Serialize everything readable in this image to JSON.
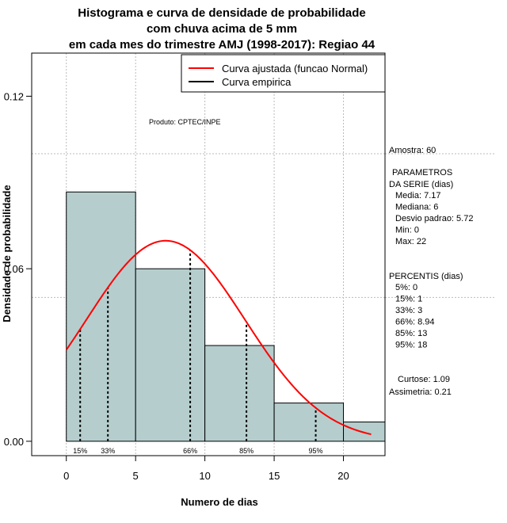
{
  "chart_data": {
    "type": "bar",
    "title_lines": [
      "Histograma e curva de densidade de probabilidade",
      "com chuva acima de 5 mm",
      "em cada mes do trimestre AMJ (1998-2017): Regiao 44"
    ],
    "xlabel": "Numero de dias",
    "ylabel": "Densidade de probabilidade",
    "xlim": [
      -2.5,
      23
    ],
    "ylim": [
      -0.005,
      0.135
    ],
    "x_ticks": [
      0,
      5,
      10,
      15,
      20
    ],
    "y_ticks": [
      0.0,
      0.06,
      0.12
    ],
    "y_tick_labels": [
      "0.00",
      "0.06",
      "0.12"
    ],
    "grid_x": [
      0,
      5,
      10,
      15,
      20
    ],
    "grid_y": [
      0.05,
      0.1
    ],
    "bins": [
      {
        "start": 0,
        "end": 5,
        "density": 0.0867
      },
      {
        "start": 5,
        "end": 10,
        "density": 0.06
      },
      {
        "start": 10,
        "end": 15,
        "density": 0.0333
      },
      {
        "start": 15,
        "end": 20,
        "density": 0.0133
      },
      {
        "start": 20,
        "end": 23,
        "density": 0.0067
      }
    ],
    "normal_curve": {
      "name": "Curva ajustada (funcao Normal)",
      "mean": 7.17,
      "sd": 5.72,
      "x_range": [
        0,
        22
      ],
      "color": "#ff0000"
    },
    "empirical_curve": {
      "name": "Curva empirica",
      "color": "#000000"
    },
    "percentile_markers": [
      {
        "label": "15%",
        "x": 1
      },
      {
        "label": "33%",
        "x": 3
      },
      {
        "label": "66%",
        "x": 8.94
      },
      {
        "label": "85%",
        "x": 13
      },
      {
        "label": "95%",
        "x": 18
      }
    ],
    "product_label": "Produto: CPTEC/INPE",
    "bar_color": "#b5cdcd",
    "legend_position": "top-right"
  },
  "side_panel": {
    "sample": "Amostra: 60",
    "params_header": [
      "PARAMETROS",
      "DA SERIE (dias)"
    ],
    "params": [
      "Media: 7.17",
      "Mediana: 6",
      "Desvio padrao: 5.72",
      "Min: 0",
      "Max: 22"
    ],
    "percentis_header": "PERCENTIS (dias)",
    "percentis": [
      "5%: 0",
      "15%: 1",
      "33%: 3",
      "66%: 8.94",
      "85%: 13",
      "95%: 18"
    ],
    "kurtosis": "Curtose: 1.09",
    "skewness": "Assimetria: 0.21"
  }
}
